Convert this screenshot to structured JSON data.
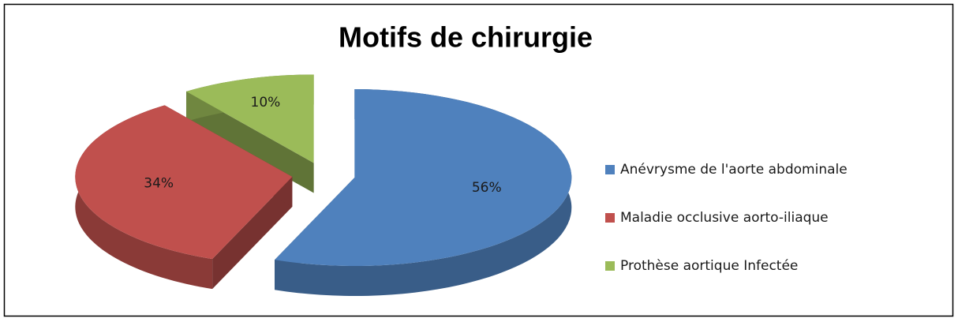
{
  "chart_data": {
    "type": "pie3d",
    "title": "Motifs de chirurgie",
    "categories": [
      "Anévrysme de l'aorte abdominale",
      "Maladie occlusive aorto-iliaque",
      "Prothèse aortique Infectée"
    ],
    "values": [
      56,
      34,
      10
    ],
    "value_labels": [
      "56%",
      "34%",
      "10%"
    ],
    "colors": [
      "#4f81bd",
      "#c0504d",
      "#9bbb59"
    ],
    "legend": "right",
    "exploded": true
  }
}
